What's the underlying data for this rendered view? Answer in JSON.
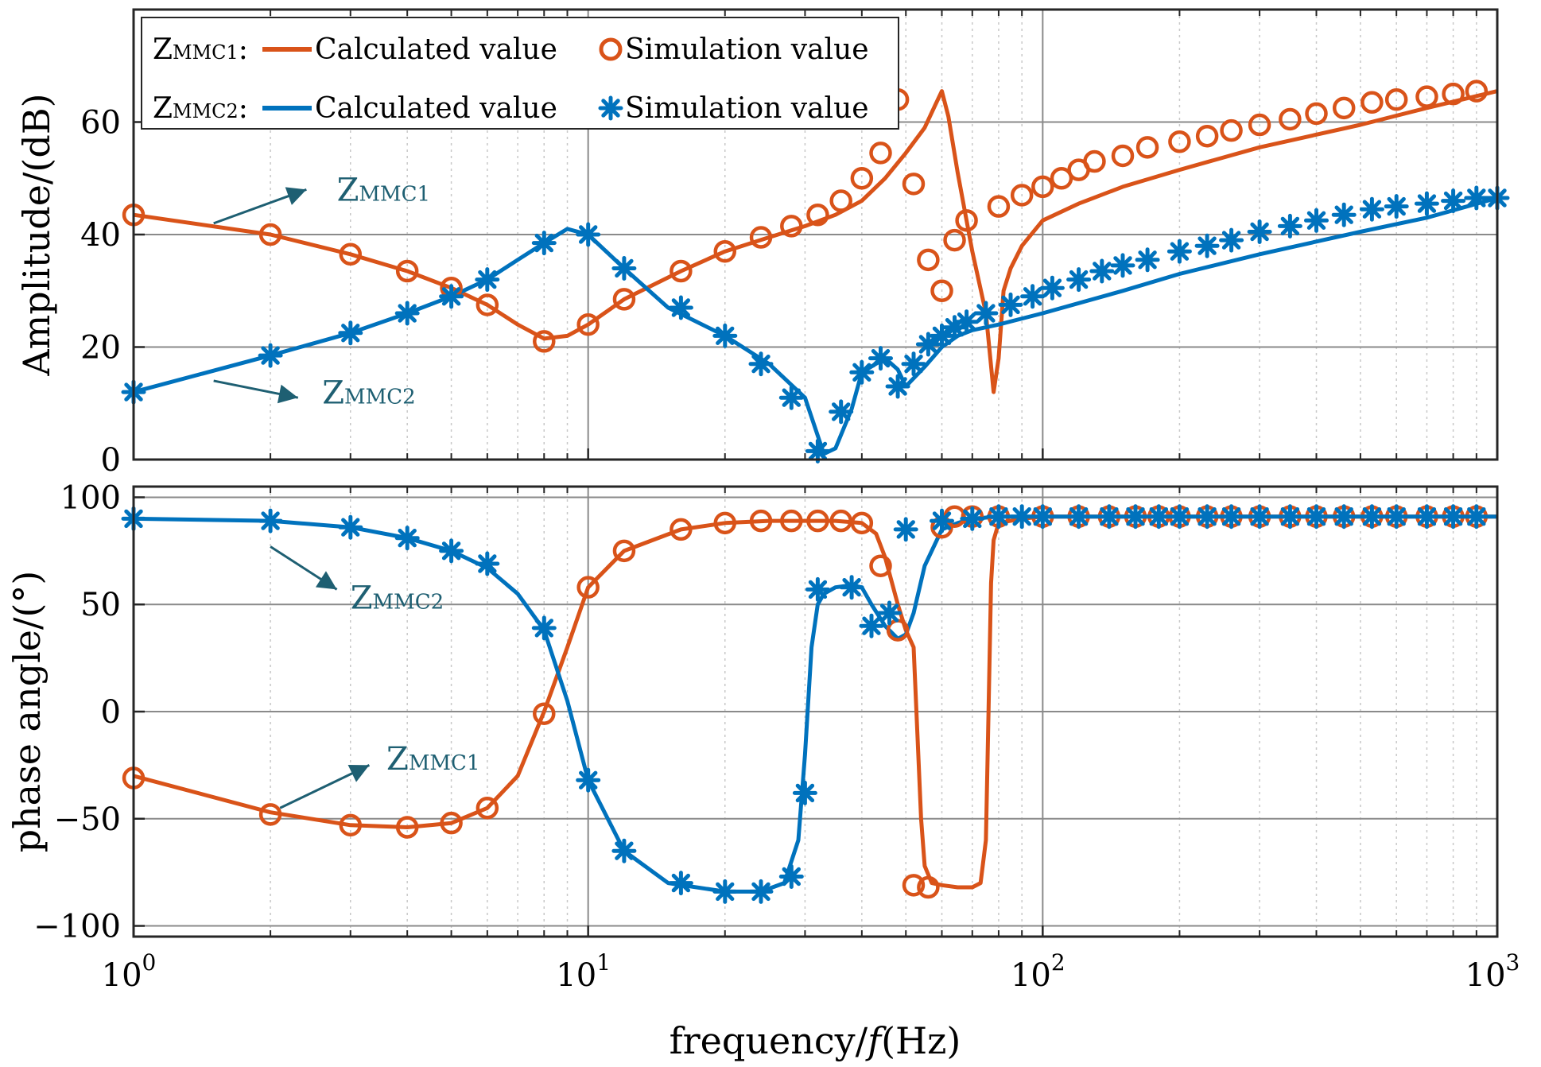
{
  "chart_data": [
    {
      "type": "line",
      "panel": "amplitude",
      "xscale": "log",
      "xlim": [
        1,
        1000
      ],
      "ylim": [
        0,
        80
      ],
      "ylabel": "Amplitude/(dB)",
      "yticks": [
        0,
        20,
        40,
        60
      ],
      "grid": true,
      "legend": {
        "placement": "top-left",
        "rows": [
          {
            "label_main": "Z",
            "label_sub": "MMC1",
            "label_suffix": ":",
            "line_label": "Calculated value",
            "marker_label": "Simulation value",
            "color": "#d95319",
            "marker": "circle"
          },
          {
            "label_main": "Z",
            "label_sub": "MMC2",
            "label_suffix": ":",
            "line_label": "Calculated value",
            "marker_label": "Simulation value",
            "color": "#0072bd",
            "marker": "asterisk"
          }
        ]
      },
      "annotations": [
        {
          "main": "Z",
          "sub": "MMC1",
          "arrow_from": [
            1.5,
            42
          ],
          "arrow_to": [
            2.4,
            48
          ],
          "text_at": [
            2.8,
            46
          ]
        },
        {
          "main": "Z",
          "sub": "MMC2",
          "arrow_from": [
            1.5,
            14
          ],
          "arrow_to": [
            2.3,
            11
          ],
          "text_at": [
            2.6,
            10
          ]
        }
      ],
      "series": [
        {
          "name": "Z_MMC1 Calculated value",
          "color": "#d95319",
          "x": [
            1,
            2,
            3,
            4,
            5,
            6,
            7,
            8,
            9,
            10,
            12,
            16,
            20,
            25,
            30,
            35,
            40,
            45,
            50,
            55,
            58,
            60,
            62,
            65,
            70,
            75,
            78,
            80,
            82,
            85,
            90,
            100,
            120,
            150,
            200,
            300,
            500,
            700,
            1000
          ],
          "y": [
            43.5,
            40,
            36.5,
            33.5,
            30.5,
            27.5,
            24,
            21.5,
            22,
            24,
            28.5,
            33.5,
            37,
            39.5,
            41.5,
            43.5,
            46,
            50,
            54.5,
            59,
            63,
            65.5,
            61,
            51,
            37,
            26,
            12,
            18,
            30,
            34,
            38,
            42.5,
            45.5,
            48.5,
            51.5,
            55.5,
            59.5,
            62.5,
            65.5
          ]
        },
        {
          "name": "Z_MMC2 Calculated value",
          "color": "#0072bd",
          "x": [
            1,
            2,
            3,
            4,
            5,
            6,
            7,
            8,
            9,
            10,
            12,
            15,
            20,
            25,
            30,
            33,
            35,
            38,
            40,
            45,
            48,
            50,
            55,
            60,
            65,
            70,
            80,
            100,
            150,
            200,
            300,
            500,
            700,
            1000
          ],
          "y": [
            12,
            18.5,
            22.5,
            26,
            29,
            32,
            35.5,
            38.5,
            41,
            40,
            34,
            27,
            22,
            17,
            11,
            1,
            2,
            9,
            15.5,
            18,
            16,
            13,
            16.5,
            20,
            22,
            23,
            24,
            26,
            30,
            33,
            36.5,
            40.5,
            43,
            46.5
          ]
        },
        {
          "name": "Z_MMC1 Simulation value",
          "color": "#d95319",
          "marker": "circle",
          "x": [
            1,
            2,
            3,
            4,
            5,
            6,
            8,
            10,
            12,
            16,
            20,
            24,
            28,
            32,
            36,
            40,
            44,
            48,
            52,
            56,
            60,
            64,
            68,
            80,
            90,
            100,
            110,
            120,
            130,
            150,
            170,
            200,
            230,
            260,
            300,
            350,
            400,
            460,
            530,
            600,
            700,
            800,
            900
          ],
          "y": [
            43.5,
            40,
            36.5,
            33.5,
            30.5,
            27.5,
            21,
            24,
            28.5,
            33.5,
            37,
            39.5,
            41.5,
            43.5,
            46,
            50,
            54.5,
            64,
            49,
            35.5,
            30,
            39,
            42.5,
            45,
            47,
            48.5,
            50,
            51.5,
            53,
            54,
            55.5,
            56.5,
            57.5,
            58.5,
            59.5,
            60.5,
            61.5,
            62.5,
            63.5,
            64,
            64.5,
            65,
            65.5
          ]
        },
        {
          "name": "Z_MMC2 Simulation value",
          "color": "#0072bd",
          "marker": "asterisk",
          "x": [
            1,
            2,
            3,
            4,
            5,
            6,
            8,
            10,
            12,
            16,
            20,
            24,
            28,
            32,
            36,
            40,
            44,
            48,
            52,
            56,
            60,
            64,
            68,
            75,
            85,
            95,
            105,
            120,
            135,
            150,
            170,
            200,
            230,
            260,
            300,
            350,
            400,
            460,
            530,
            600,
            700,
            800,
            900,
            1000
          ],
          "y": [
            12,
            18.5,
            22.5,
            26,
            29,
            32,
            38.5,
            40,
            34,
            27,
            22,
            17,
            11,
            1.5,
            8.5,
            15.5,
            18,
            13,
            17,
            20.5,
            22,
            23.5,
            24.5,
            26,
            27.5,
            29,
            30.5,
            32,
            33.5,
            34.5,
            35.5,
            37,
            38,
            39,
            40.5,
            41.5,
            42.5,
            43.5,
            44.5,
            45,
            45.5,
            46,
            46.5,
            46.5
          ]
        }
      ]
    },
    {
      "type": "line",
      "panel": "phase",
      "xscale": "log",
      "xlim": [
        1,
        1000
      ],
      "ylim": [
        -105,
        105
      ],
      "xlabel_pre": "frequency/",
      "xlabel_italic": "f",
      "xlabel_post": "(Hz)",
      "ylabel": "phase angle/(°)",
      "xticks": [
        {
          "value": 1,
          "base": "10",
          "exp": "0"
        },
        {
          "value": 10,
          "base": "10",
          "exp": "1"
        },
        {
          "value": 100,
          "base": "10",
          "exp": "2"
        },
        {
          "value": 1000,
          "base": "10",
          "exp": "3"
        }
      ],
      "yticks": [
        {
          "value": -100,
          "label": "−100"
        },
        {
          "value": -50,
          "label": "−50"
        },
        {
          "value": 0,
          "label": "0"
        },
        {
          "value": 50,
          "label": "50"
        },
        {
          "value": 100,
          "label": "100"
        }
      ],
      "grid": true,
      "annotations": [
        {
          "main": "Z",
          "sub": "MMC2",
          "arrow_from": [
            2.0,
            77
          ],
          "arrow_to": [
            2.8,
            57
          ],
          "text_at": [
            3.0,
            48
          ]
        },
        {
          "main": "Z",
          "sub": "MMC1",
          "arrow_from": [
            2.1,
            -45
          ],
          "arrow_to": [
            3.3,
            -25
          ],
          "text_at": [
            3.6,
            -27
          ]
        }
      ],
      "series": [
        {
          "name": "Z_MMC1 Calculated value",
          "color": "#d95319",
          "x": [
            1,
            2,
            3,
            4,
            5,
            6,
            7,
            8,
            9,
            10,
            12,
            16,
            20,
            25,
            30,
            35,
            40,
            43,
            45,
            48,
            50,
            52,
            53,
            54,
            55,
            57,
            60,
            65,
            70,
            73,
            75,
            76,
            77,
            78,
            80,
            90,
            100,
            200,
            500,
            1000
          ],
          "y": [
            -30,
            -47,
            -53,
            -54,
            -52,
            -45,
            -30,
            0,
            30,
            58,
            75,
            85,
            88,
            89,
            89,
            89,
            88,
            83,
            72,
            50,
            38,
            30,
            -10,
            -50,
            -72,
            -80,
            -81,
            -82,
            -82,
            -80,
            -60,
            0,
            60,
            80,
            88,
            90,
            91,
            91,
            91,
            91
          ]
        },
        {
          "name": "Z_MMC2 Calculated value",
          "color": "#0072bd",
          "x": [
            1,
            2,
            3,
            4,
            5,
            6,
            7,
            8,
            9,
            10,
            12,
            15,
            20,
            24,
            27,
            29,
            30,
            31,
            32,
            33,
            35,
            38,
            40,
            42,
            45,
            48,
            50,
            52,
            55,
            60,
            65,
            70,
            80,
            100,
            200,
            500,
            1000
          ],
          "y": [
            90,
            89,
            86,
            81,
            75,
            67,
            55,
            38,
            5,
            -32,
            -65,
            -80,
            -84,
            -84,
            -80,
            -60,
            -20,
            30,
            50,
            55,
            58,
            59,
            58,
            50,
            40,
            34,
            36,
            46,
            68,
            85,
            88,
            90,
            91,
            91,
            91,
            91,
            91
          ]
        },
        {
          "name": "Z_MMC1 Simulation value",
          "color": "#d95319",
          "marker": "circle",
          "x": [
            1,
            2,
            3,
            4,
            5,
            6,
            8,
            10,
            12,
            16,
            20,
            24,
            28,
            32,
            36,
            40,
            44,
            48,
            52,
            56,
            60,
            64,
            70,
            80,
            100,
            120,
            140,
            160,
            180,
            200,
            230,
            260,
            300,
            350,
            400,
            460,
            530,
            600,
            700,
            800,
            900
          ],
          "y": [
            -31,
            -48,
            -53,
            -54,
            -52,
            -45,
            -1,
            58,
            75,
            85,
            88,
            89,
            89,
            89,
            89,
            88,
            68,
            38,
            -81,
            -82,
            86,
            91,
            91,
            91,
            91,
            91,
            91,
            91,
            91,
            91,
            91,
            91,
            91,
            91,
            91,
            91,
            91,
            91,
            91,
            91,
            91
          ]
        },
        {
          "name": "Z_MMC2 Simulation value",
          "color": "#0072bd",
          "marker": "asterisk",
          "x": [
            1,
            2,
            3,
            4,
            5,
            6,
            8,
            10,
            12,
            16,
            20,
            24,
            28,
            30,
            32,
            38,
            42,
            46,
            50,
            60,
            70,
            80,
            90,
            100,
            120,
            140,
            160,
            180,
            200,
            230,
            260,
            300,
            350,
            400,
            460,
            530,
            600,
            700,
            800,
            900
          ],
          "y": [
            90,
            89,
            86,
            81,
            75,
            69,
            39,
            -32,
            -65,
            -80,
            -84,
            -84,
            -77,
            -38,
            57,
            58,
            40,
            46,
            85,
            89,
            90,
            91,
            91,
            91,
            91,
            91,
            91,
            91,
            91,
            91,
            91,
            91,
            91,
            91,
            91,
            91,
            91,
            91,
            91,
            91
          ]
        }
      ]
    }
  ]
}
